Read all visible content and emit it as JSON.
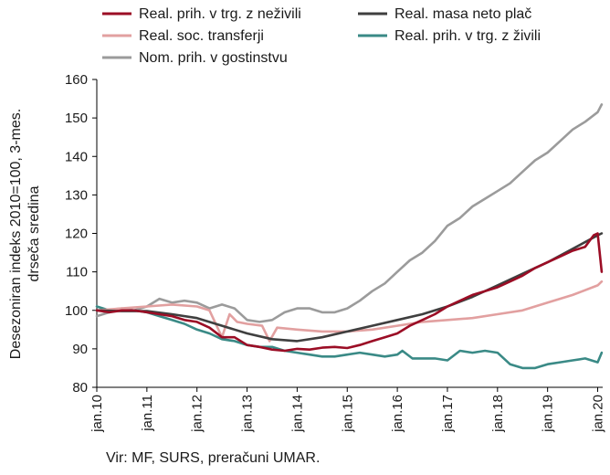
{
  "chart_data": {
    "type": "line",
    "ylabel_lines": [
      "Desezoniran indeks 2010=100, 3-mes.",
      "drseča sredina"
    ],
    "ylim": [
      80,
      160
    ],
    "yticks": [
      80,
      90,
      100,
      110,
      120,
      130,
      140,
      150,
      160
    ],
    "xticks": [
      {
        "label": "jan.10",
        "t": 2010.0
      },
      {
        "label": "jan.11",
        "t": 2011.0
      },
      {
        "label": "jan.12",
        "t": 2012.0
      },
      {
        "label": "jan.13",
        "t": 2013.0
      },
      {
        "label": "jan.14",
        "t": 2014.0
      },
      {
        "label": "jan.15",
        "t": 2015.0
      },
      {
        "label": "jan.16",
        "t": 2016.0
      },
      {
        "label": "jan.17",
        "t": 2017.0
      },
      {
        "label": "jan.18",
        "t": 2018.0
      },
      {
        "label": "jan.19",
        "t": 2019.0
      },
      {
        "label": "jan.20",
        "t": 2020.0
      }
    ],
    "xlim": [
      2010.0,
      2020.1
    ],
    "grid": false,
    "legend_position": "top",
    "series": [
      {
        "name": "Real. prih. v trg. z neživili",
        "color": "#9b0d25",
        "points": [
          [
            2010.0,
            100
          ],
          [
            2010.25,
            99.5
          ],
          [
            2010.5,
            100
          ],
          [
            2010.75,
            100
          ],
          [
            2011.0,
            99.5
          ],
          [
            2011.25,
            99
          ],
          [
            2011.5,
            98.5
          ],
          [
            2011.75,
            97.5
          ],
          [
            2012.0,
            97
          ],
          [
            2012.25,
            95.5
          ],
          [
            2012.5,
            93
          ],
          [
            2012.75,
            93
          ],
          [
            2013.0,
            91
          ],
          [
            2013.25,
            90.5
          ],
          [
            2013.5,
            89.8
          ],
          [
            2013.75,
            89.5
          ],
          [
            2014.0,
            90
          ],
          [
            2014.25,
            89.8
          ],
          [
            2014.5,
            90.3
          ],
          [
            2014.75,
            90.5
          ],
          [
            2015.0,
            90.2
          ],
          [
            2015.25,
            91
          ],
          [
            2015.5,
            92
          ],
          [
            2015.75,
            93
          ],
          [
            2016.0,
            94
          ],
          [
            2016.25,
            96
          ],
          [
            2016.5,
            97.5
          ],
          [
            2016.75,
            99
          ],
          [
            2017.0,
            101
          ],
          [
            2017.25,
            102.5
          ],
          [
            2017.5,
            104
          ],
          [
            2017.75,
            105
          ],
          [
            2018.0,
            106
          ],
          [
            2018.25,
            107.5
          ],
          [
            2018.5,
            109
          ],
          [
            2018.75,
            111
          ],
          [
            2019.0,
            112.5
          ],
          [
            2019.25,
            114
          ],
          [
            2019.5,
            115.5
          ],
          [
            2019.75,
            116.5
          ],
          [
            2019.92,
            119.5
          ],
          [
            2020.0,
            120
          ],
          [
            2020.08,
            110
          ]
        ]
      },
      {
        "name": "Real. masa neto plač",
        "color": "#3f3f3f",
        "points": [
          [
            2010.0,
            100
          ],
          [
            2010.5,
            99.8
          ],
          [
            2011.0,
            99.8
          ],
          [
            2011.5,
            99
          ],
          [
            2012.0,
            98
          ],
          [
            2012.5,
            96
          ],
          [
            2013.0,
            94
          ],
          [
            2013.5,
            92.5
          ],
          [
            2014.0,
            92
          ],
          [
            2014.5,
            93
          ],
          [
            2015.0,
            94.5
          ],
          [
            2015.5,
            96
          ],
          [
            2016.0,
            97.5
          ],
          [
            2016.5,
            99
          ],
          [
            2017.0,
            101
          ],
          [
            2017.5,
            103.5
          ],
          [
            2018.0,
            106.5
          ],
          [
            2018.5,
            109.5
          ],
          [
            2019.0,
            112.5
          ],
          [
            2019.5,
            116
          ],
          [
            2020.0,
            119.5
          ],
          [
            2020.08,
            120
          ]
        ]
      },
      {
        "name": "Real. soc. transferji",
        "color": "#e2a0a0",
        "points": [
          [
            2010.0,
            100
          ],
          [
            2010.5,
            100.5
          ],
          [
            2011.0,
            101
          ],
          [
            2011.5,
            101.5
          ],
          [
            2012.0,
            101
          ],
          [
            2012.25,
            100
          ],
          [
            2012.5,
            93
          ],
          [
            2012.65,
            99
          ],
          [
            2012.8,
            97
          ],
          [
            2013.0,
            96.5
          ],
          [
            2013.3,
            96
          ],
          [
            2013.45,
            92
          ],
          [
            2013.6,
            95.5
          ],
          [
            2014.0,
            95
          ],
          [
            2014.5,
            94.5
          ],
          [
            2015.0,
            94.5
          ],
          [
            2015.5,
            95
          ],
          [
            2016.0,
            96
          ],
          [
            2016.5,
            97
          ],
          [
            2017.0,
            97.5
          ],
          [
            2017.5,
            98
          ],
          [
            2018.0,
            99
          ],
          [
            2018.5,
            100
          ],
          [
            2019.0,
            102
          ],
          [
            2019.5,
            104
          ],
          [
            2020.0,
            106.5
          ],
          [
            2020.08,
            107.5
          ]
        ]
      },
      {
        "name": "Real. prih. v trg. z živili",
        "color": "#3a8a86",
        "points": [
          [
            2010.0,
            101
          ],
          [
            2010.25,
            100
          ],
          [
            2010.5,
            100
          ],
          [
            2010.75,
            100
          ],
          [
            2011.0,
            99.5
          ],
          [
            2011.25,
            98.5
          ],
          [
            2011.5,
            97.5
          ],
          [
            2011.75,
            96.5
          ],
          [
            2012.0,
            95
          ],
          [
            2012.25,
            94
          ],
          [
            2012.5,
            92.5
          ],
          [
            2012.75,
            92
          ],
          [
            2013.0,
            91
          ],
          [
            2013.25,
            90.5
          ],
          [
            2013.5,
            90.5
          ],
          [
            2013.75,
            89.5
          ],
          [
            2014.0,
            89
          ],
          [
            2014.25,
            88.5
          ],
          [
            2014.5,
            88
          ],
          [
            2014.75,
            88
          ],
          [
            2015.0,
            88.5
          ],
          [
            2015.25,
            89
          ],
          [
            2015.5,
            88.5
          ],
          [
            2015.75,
            88
          ],
          [
            2016.0,
            88.5
          ],
          [
            2016.1,
            89.5
          ],
          [
            2016.3,
            87.5
          ],
          [
            2016.5,
            87.5
          ],
          [
            2016.75,
            87.5
          ],
          [
            2017.0,
            87
          ],
          [
            2017.25,
            89.5
          ],
          [
            2017.5,
            89
          ],
          [
            2017.75,
            89.5
          ],
          [
            2018.0,
            89
          ],
          [
            2018.25,
            86
          ],
          [
            2018.5,
            85
          ],
          [
            2018.75,
            85
          ],
          [
            2019.0,
            86
          ],
          [
            2019.25,
            86.5
          ],
          [
            2019.5,
            87
          ],
          [
            2019.75,
            87.5
          ],
          [
            2020.0,
            86.5
          ],
          [
            2020.08,
            89
          ]
        ]
      },
      {
        "name": "Nom. prih. v gostinstvu",
        "color": "#9b9b9b",
        "points": [
          [
            2010.0,
            98.5
          ],
          [
            2010.25,
            99.5
          ],
          [
            2010.5,
            100.5
          ],
          [
            2010.75,
            100
          ],
          [
            2011.0,
            101
          ],
          [
            2011.25,
            103
          ],
          [
            2011.5,
            102
          ],
          [
            2011.75,
            102.5
          ],
          [
            2012.0,
            102
          ],
          [
            2012.25,
            100.5
          ],
          [
            2012.5,
            101.5
          ],
          [
            2012.75,
            100.5
          ],
          [
            2013.0,
            97.5
          ],
          [
            2013.25,
            97
          ],
          [
            2013.5,
            97.5
          ],
          [
            2013.75,
            99.5
          ],
          [
            2014.0,
            100.5
          ],
          [
            2014.25,
            100.5
          ],
          [
            2014.5,
            99.5
          ],
          [
            2014.75,
            99.5
          ],
          [
            2015.0,
            100.5
          ],
          [
            2015.25,
            102.5
          ],
          [
            2015.5,
            105
          ],
          [
            2015.75,
            107
          ],
          [
            2016.0,
            110
          ],
          [
            2016.25,
            113
          ],
          [
            2016.5,
            115
          ],
          [
            2016.75,
            118
          ],
          [
            2017.0,
            122
          ],
          [
            2017.25,
            124
          ],
          [
            2017.5,
            127
          ],
          [
            2017.75,
            129
          ],
          [
            2018.0,
            131
          ],
          [
            2018.25,
            133
          ],
          [
            2018.5,
            136
          ],
          [
            2018.75,
            139
          ],
          [
            2019.0,
            141
          ],
          [
            2019.25,
            144
          ],
          [
            2019.5,
            147
          ],
          [
            2019.75,
            149
          ],
          [
            2020.0,
            151.5
          ],
          [
            2020.08,
            153.5
          ]
        ]
      }
    ]
  },
  "source": "Vir: MF, SURS, preračuni UMAR."
}
